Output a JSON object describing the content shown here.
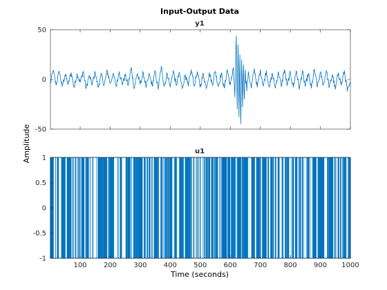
{
  "figure": {
    "title": "Input-Output Data",
    "ylabel": "Amplitude",
    "xlabel": "Time (seconds)",
    "colors": {
      "trace": "#0072BD",
      "axes": "#262626",
      "background": "#ffffff"
    }
  },
  "chart_data": [
    {
      "type": "line",
      "name": "y1",
      "title": "y1",
      "xlim": [
        1,
        1000
      ],
      "ylim": [
        -50,
        50
      ],
      "yticks": [
        -50,
        0,
        50
      ],
      "xticks": [
        100,
        200,
        300,
        400,
        500,
        600,
        700,
        800,
        900,
        1000
      ],
      "xtick_labels_shown": false,
      "grid": false,
      "description_of_data": "noisy output around 0 with amplitude about ±10, burst between t≈615 and t≈650 reaching +44 and -45",
      "x": [
        1,
        10,
        20,
        30,
        40,
        50,
        60,
        70,
        80,
        90,
        100,
        110,
        120,
        130,
        140,
        150,
        160,
        170,
        180,
        190,
        200,
        210,
        220,
        230,
        240,
        250,
        260,
        270,
        280,
        290,
        300,
        310,
        320,
        330,
        340,
        350,
        360,
        370,
        380,
        390,
        400,
        410,
        420,
        430,
        440,
        450,
        460,
        470,
        480,
        490,
        500,
        510,
        520,
        530,
        540,
        550,
        560,
        570,
        580,
        590,
        600,
        610,
        615,
        620,
        623,
        626,
        629,
        632,
        635,
        638,
        641,
        644,
        647,
        650,
        655,
        660,
        670,
        680,
        690,
        700,
        710,
        720,
        730,
        740,
        750,
        760,
        770,
        780,
        790,
        800,
        810,
        820,
        830,
        840,
        850,
        860,
        870,
        880,
        890,
        900,
        910,
        920,
        930,
        940,
        950,
        960,
        970,
        980,
        990,
        1000
      ],
      "y": [
        -4,
        9,
        -6,
        8,
        -7,
        5,
        -5,
        7,
        -8,
        6,
        -3,
        8,
        -9,
        4,
        -5,
        7,
        -8,
        5,
        -6,
        9,
        -4,
        6,
        -7,
        8,
        -5,
        4,
        -6,
        12,
        -9,
        6,
        -5,
        7,
        -8,
        5,
        -6,
        8,
        -10,
        13,
        -7,
        6,
        -8,
        9,
        -6,
        7,
        -9,
        5,
        -7,
        10,
        -6,
        8,
        -8,
        6,
        -9,
        7,
        -5,
        8,
        -7,
        6,
        -9,
        10,
        -6,
        12,
        -18,
        44,
        -30,
        35,
        -38,
        25,
        -45,
        20,
        -28,
        15,
        -20,
        10,
        -12,
        8,
        -9,
        11,
        -8,
        10,
        -7,
        9,
        -8,
        6,
        -9,
        8,
        -7,
        10,
        -6,
        7,
        -8,
        9,
        -10,
        8,
        -7,
        6,
        -9,
        10,
        -8,
        7,
        -6,
        9,
        -8,
        5,
        -10,
        7,
        -6,
        9,
        -12,
        -4
      ]
    },
    {
      "type": "stairs",
      "name": "u1",
      "title": "u1",
      "xlim": [
        1,
        1000
      ],
      "ylim": [
        -1,
        1
      ],
      "yticks": [
        -1,
        -0.5,
        0,
        0.5,
        1
      ],
      "ytick_labels": [
        "-1",
        "-0.5",
        "0",
        "0.5",
        "1"
      ],
      "xticks": [
        100,
        200,
        300,
        400,
        500,
        600,
        700,
        800,
        900,
        1000
      ],
      "xtick_labels": [
        "100",
        "200",
        "300",
        "400",
        "500",
        "600",
        "700",
        "800",
        "900",
        "1000"
      ],
      "grid": false,
      "levels": [
        -1,
        1
      ],
      "description_of_data": "pseudo-random binary signal switching between -1 and +1 at a dense rate"
    }
  ]
}
